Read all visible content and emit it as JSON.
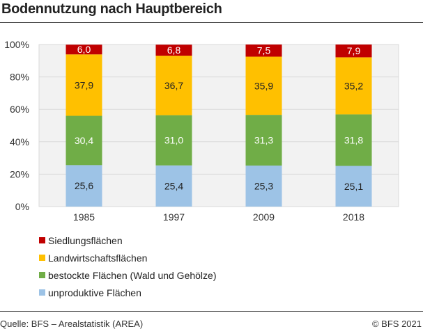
{
  "chart_data": {
    "type": "bar",
    "stacked": true,
    "title": "Bodennutzung nach Hauptbereich",
    "categories": [
      "1985",
      "1997",
      "2009",
      "2018"
    ],
    "series": [
      {
        "name": "unproduktive Flächen",
        "color": "#9dc3e6",
        "values": [
          25.6,
          25.4,
          25.3,
          25.1
        ],
        "labels": [
          "25,6",
          "25,4",
          "25,3",
          "25,1"
        ],
        "label_color": "#222222"
      },
      {
        "name": "bestockte Flächen (Wald und Gehölze)",
        "color": "#70ad47",
        "values": [
          30.4,
          31.0,
          31.3,
          31.8
        ],
        "labels": [
          "30,4",
          "31,0",
          "31,3",
          "31,8"
        ],
        "label_color": "#ffffff"
      },
      {
        "name": "Landwirtschaftsflächen",
        "color": "#ffc000",
        "values": [
          37.9,
          36.7,
          35.9,
          35.2
        ],
        "labels": [
          "37,9",
          "36,7",
          "35,9",
          "35,2"
        ],
        "label_color": "#222222"
      },
      {
        "name": "Siedlungsflächen",
        "color": "#c00000",
        "values": [
          6.0,
          6.8,
          7.5,
          7.9
        ],
        "labels": [
          "6,0",
          "6,8",
          "7,5",
          "7,9"
        ],
        "label_color": "#ffffff"
      }
    ],
    "ylim": [
      0,
      100
    ],
    "yticks": [
      "0%",
      "20%",
      "40%",
      "60%",
      "80%",
      "100%"
    ],
    "grid": true,
    "legend_position": "bottom-left",
    "legend_order": [
      "Siedlungsflächen",
      "Landwirtschaftsflächen",
      "bestockte Flächen (Wald und Gehölze)",
      "unproduktive Flächen"
    ]
  },
  "footer": {
    "source": "Quelle: BFS – Arealstatistik (AREA)",
    "copyright": "© BFS 2021"
  }
}
